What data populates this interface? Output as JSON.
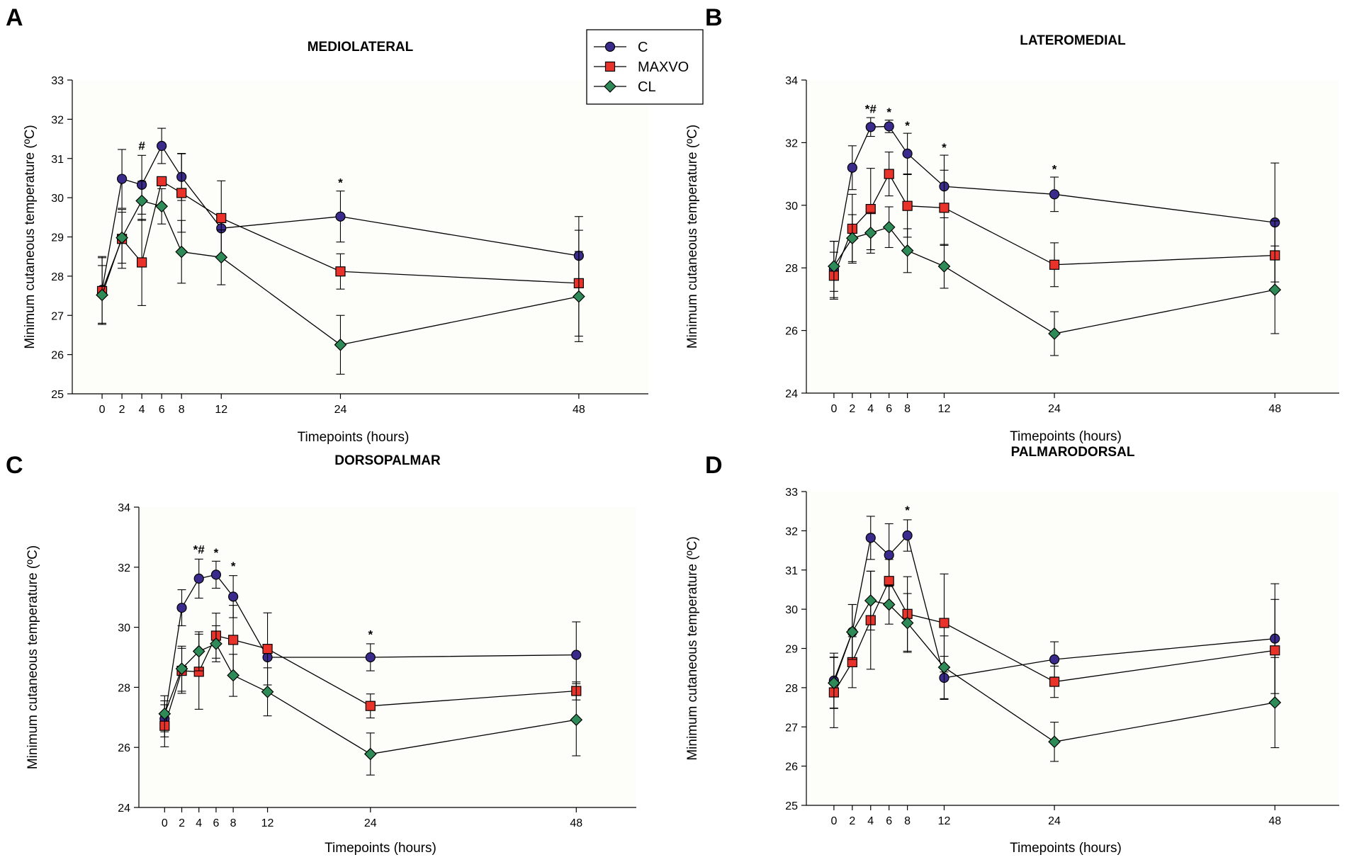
{
  "colors": {
    "C": "#3a2a8c",
    "MAXVO": "#e8322a",
    "CL": "#2e8a57",
    "line": "#000000",
    "background": "#fdfdf9"
  },
  "legend": [
    {
      "key": "C",
      "label": "C",
      "marker": "circle"
    },
    {
      "key": "MAXVO",
      "label": "MAXVO",
      "marker": "square"
    },
    {
      "key": "CL",
      "label": "CL",
      "marker": "diamond"
    }
  ],
  "chart_data": [
    {
      "panel": "A",
      "type": "line",
      "title": "MEDIOLATERAL",
      "xlabel": "Timepoints (hours)",
      "ylabel": "Minimum cutaneous temperature (ºC)",
      "x": [
        0,
        2,
        4,
        6,
        8,
        12,
        24,
        48
      ],
      "xlim": [
        -3,
        55
      ],
      "ylim": [
        25,
        33
      ],
      "yticks": [
        25,
        26,
        27,
        28,
        29,
        30,
        31,
        32,
        33
      ],
      "series": [
        {
          "name": "C",
          "values": [
            27.65,
            30.48,
            30.33,
            31.32,
            30.53,
            29.22,
            29.52,
            28.52
          ],
          "errors": [
            0.85,
            0.75,
            0.75,
            0.45,
            0.6,
            0.0,
            0.65,
            1.0
          ]
        },
        {
          "name": "MAXVO",
          "values": [
            27.62,
            28.95,
            28.35,
            30.42,
            30.12,
            29.48,
            28.12,
            27.82
          ],
          "errors": [
            0.85,
            0.75,
            1.1,
            0.0,
            1.0,
            0.95,
            0.45,
            1.35
          ]
        },
        {
          "name": "CL",
          "values": [
            27.52,
            28.98,
            29.92,
            29.78,
            28.62,
            28.48,
            26.25,
            27.48
          ],
          "errors": [
            0.75,
            0.65,
            0.5,
            0.45,
            0.8,
            0.7,
            0.75,
            1.15
          ]
        }
      ],
      "annotations": [
        {
          "x": 4,
          "text": "#",
          "y": 31.22
        },
        {
          "x": 24,
          "text": "*",
          "y": 30.28
        }
      ]
    },
    {
      "panel": "B",
      "type": "line",
      "title": "LATEROMEDIAL",
      "xlabel": "Timepoints (hours)",
      "ylabel": "Minimum cutaneous temperature (ºC)",
      "x": [
        0,
        2,
        4,
        6,
        8,
        12,
        24,
        48
      ],
      "xlim": [
        -3,
        55
      ],
      "ylim": [
        24,
        34
      ],
      "yticks": [
        24,
        26,
        28,
        30,
        32,
        34
      ],
      "series": [
        {
          "name": "C",
          "values": [
            27.95,
            31.2,
            32.5,
            32.52,
            31.65,
            30.6,
            30.35,
            29.45
          ],
          "errors": [
            0.9,
            0.7,
            0.3,
            0.2,
            0.65,
            1.0,
            0.55,
            1.9
          ]
        },
        {
          "name": "MAXVO",
          "values": [
            27.75,
            29.25,
            29.88,
            31.0,
            29.98,
            29.92,
            28.1,
            28.4
          ],
          "errors": [
            0.75,
            1.1,
            1.3,
            0.7,
            1.0,
            1.2,
            0.7,
            1.1
          ]
        },
        {
          "name": "CL",
          "values": [
            28.05,
            28.95,
            29.12,
            29.3,
            28.55,
            28.05,
            25.9,
            27.3
          ],
          "errors": [
            0.8,
            0.75,
            0.65,
            0.65,
            0.7,
            0.7,
            0.7,
            1.4
          ]
        }
      ],
      "annotations": [
        {
          "x": 4,
          "text": "*#",
          "y": 32.95
        },
        {
          "x": 6,
          "text": "*",
          "y": 32.85
        },
        {
          "x": 8,
          "text": "*",
          "y": 32.42
        },
        {
          "x": 12,
          "text": "*",
          "y": 31.72
        },
        {
          "x": 24,
          "text": "*",
          "y": 31.02
        }
      ]
    },
    {
      "panel": "C",
      "type": "line",
      "title": "DORSOPALMAR",
      "xlabel": "Timepoints (hours)",
      "ylabel": "Minimum cutaneous temperature (ºC)",
      "x": [
        0,
        2,
        4,
        6,
        8,
        12,
        24,
        48
      ],
      "xlim": [
        -3,
        55
      ],
      "ylim": [
        24,
        34
      ],
      "yticks": [
        24,
        26,
        28,
        30,
        32,
        34
      ],
      "series": [
        {
          "name": "C",
          "values": [
            26.95,
            30.65,
            31.62,
            31.75,
            31.02,
            29.0,
            29.0,
            29.08
          ],
          "errors": [
            0.6,
            0.6,
            0.65,
            0.45,
            0.7,
            0.0,
            0.45,
            1.1
          ]
        },
        {
          "name": "MAXVO",
          "values": [
            26.72,
            28.55,
            28.52,
            29.72,
            29.58,
            29.28,
            27.38,
            27.88
          ],
          "errors": [
            0.7,
            0.75,
            1.25,
            0.75,
            1.15,
            1.2,
            0.4,
            0.3
          ]
        },
        {
          "name": "CL",
          "values": [
            27.12,
            28.62,
            29.2,
            29.45,
            28.4,
            27.85,
            25.78,
            26.92
          ],
          "errors": [
            0.6,
            0.75,
            0.65,
            0.6,
            0.7,
            0.8,
            0.7,
            1.2
          ]
        }
      ],
      "annotations": [
        {
          "x": 4,
          "text": "*#",
          "y": 32.45
        },
        {
          "x": 6,
          "text": "*",
          "y": 32.35
        },
        {
          "x": 8,
          "text": "*",
          "y": 31.9
        },
        {
          "x": 24,
          "text": "*",
          "y": 29.62
        }
      ]
    },
    {
      "panel": "D",
      "type": "line",
      "title": "PALMARODORSAL",
      "xlabel": "Timepoints (hours)",
      "ylabel": "Minimum cutaneous temperature (ºC)",
      "x": [
        0,
        2,
        4,
        6,
        8,
        12,
        24,
        48
      ],
      "xlim": [
        -3,
        55
      ],
      "ylim": [
        25,
        33
      ],
      "yticks": [
        25,
        26,
        27,
        28,
        29,
        30,
        31,
        32,
        33
      ],
      "series": [
        {
          "name": "C",
          "values": [
            28.18,
            29.42,
            31.82,
            31.38,
            31.88,
            28.25,
            28.72,
            29.25
          ],
          "errors": [
            0.7,
            0.7,
            0.55,
            0.8,
            0.4,
            0.55,
            0.45,
            1.4
          ]
        },
        {
          "name": "MAXVO",
          "values": [
            27.88,
            28.65,
            29.72,
            30.72,
            29.88,
            29.65,
            28.15,
            28.95
          ],
          "errors": [
            0.9,
            0.65,
            1.25,
            0.55,
            0.95,
            1.25,
            0.4,
            1.3
          ]
        },
        {
          "name": "CL",
          "values": [
            28.12,
            29.42,
            30.22,
            30.12,
            29.65,
            28.52,
            26.62,
            27.62
          ],
          "errors": [
            0.65,
            0.7,
            0.75,
            0.5,
            0.75,
            0.8,
            0.5,
            1.15
          ]
        }
      ],
      "annotations": [
        {
          "x": 8,
          "text": "*",
          "y": 32.42
        }
      ]
    }
  ]
}
